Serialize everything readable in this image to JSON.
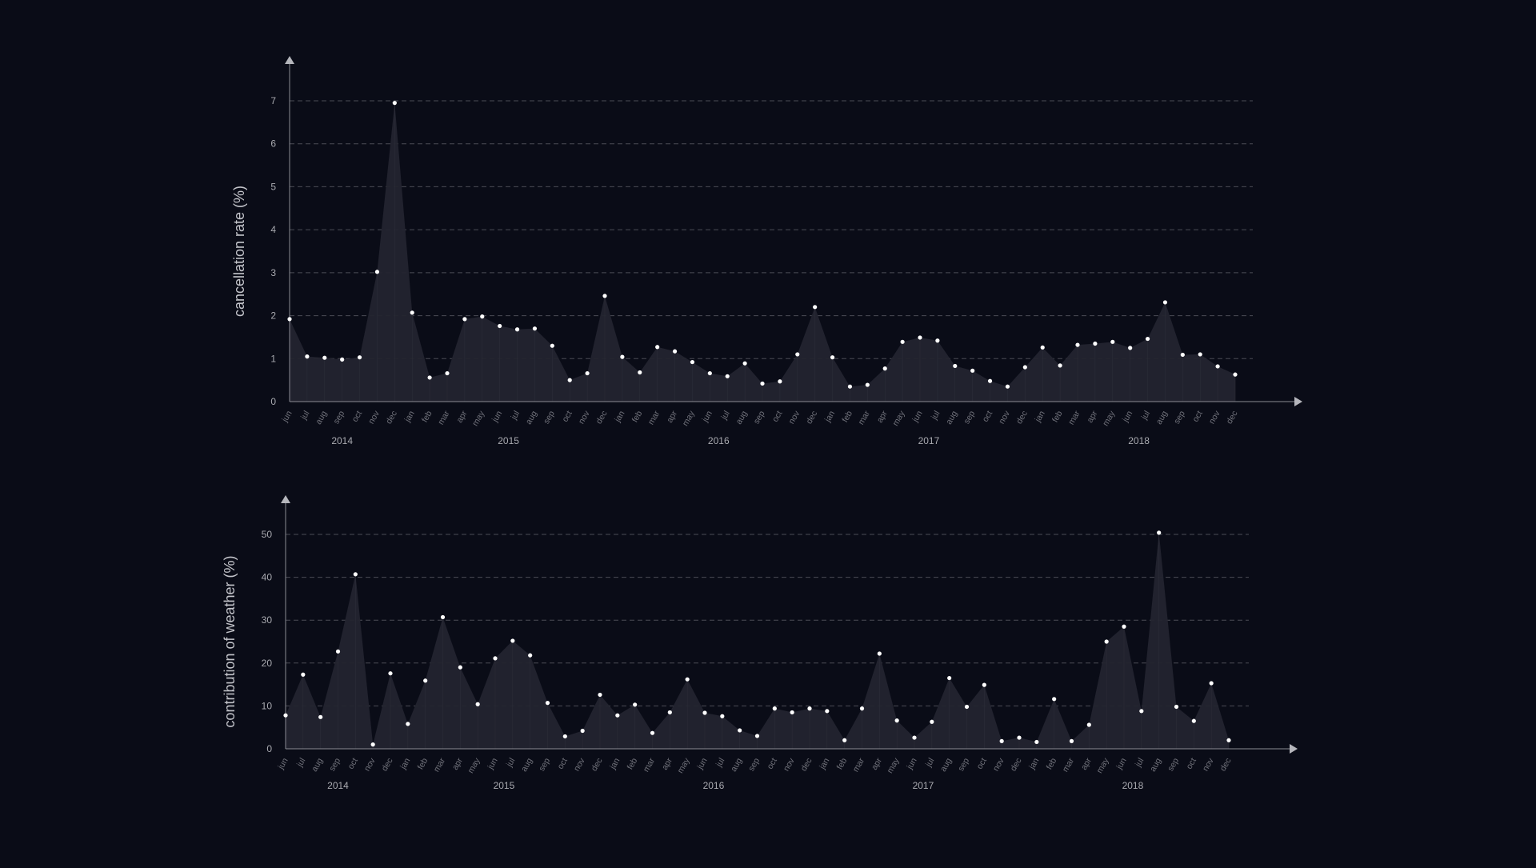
{
  "theme": {
    "background": "#0a0c17",
    "area_fill": "#23242f",
    "axis": "#8a8b93",
    "grid": "#4a4b55",
    "text": "#a9aab0",
    "point": "#ffffff"
  },
  "chart_data": [
    {
      "type": "area",
      "ylabel": "cancellation rate (%)",
      "ylim": [
        0,
        7
      ],
      "yticks": [
        0,
        1,
        2,
        3,
        4,
        5,
        6,
        7
      ],
      "grid": true,
      "x": [
        "jun",
        "jul",
        "aug",
        "sep",
        "oct",
        "nov",
        "dec",
        "jan",
        "feb",
        "mar",
        "apr",
        "may",
        "jun",
        "jul",
        "aug",
        "sep",
        "oct",
        "nov",
        "dec",
        "jan",
        "feb",
        "mar",
        "apr",
        "may",
        "jun",
        "jul",
        "aug",
        "sep",
        "oct",
        "nov",
        "dec",
        "jan",
        "feb",
        "mar",
        "apr",
        "may",
        "jun",
        "jul",
        "aug",
        "sep",
        "oct",
        "nov",
        "dec",
        "jan",
        "feb",
        "mar",
        "apr",
        "may",
        "jun",
        "jul",
        "aug",
        "sep",
        "oct",
        "nov",
        "dec"
      ],
      "years": [
        {
          "label": "2014",
          "from": 0,
          "to": 6
        },
        {
          "label": "2015",
          "from": 7,
          "to": 18
        },
        {
          "label": "2016",
          "from": 19,
          "to": 30
        },
        {
          "label": "2017",
          "from": 31,
          "to": 42
        },
        {
          "label": "2018",
          "from": 43,
          "to": 54
        }
      ],
      "values": [
        1.92,
        1.05,
        1.02,
        0.98,
        1.03,
        3.02,
        6.95,
        2.07,
        0.56,
        0.66,
        1.92,
        1.98,
        1.76,
        1.68,
        1.7,
        1.3,
        0.5,
        0.66,
        2.46,
        1.04,
        0.68,
        1.27,
        1.17,
        0.92,
        0.66,
        0.59,
        0.89,
        0.42,
        0.47,
        1.1,
        2.2,
        1.03,
        0.35,
        0.39,
        0.77,
        1.39,
        1.49,
        1.42,
        0.83,
        0.72,
        0.48,
        0.35,
        0.8,
        1.26,
        0.84,
        1.32,
        1.35,
        1.39,
        1.25,
        1.46,
        2.31,
        1.09,
        1.1,
        0.82,
        0.63
      ]
    },
    {
      "type": "area",
      "ylabel": "contribution of weather (%)",
      "ylim": [
        0,
        50
      ],
      "yticks": [
        0,
        10,
        20,
        30,
        40,
        50
      ],
      "grid": true,
      "x": [
        "jun",
        "jul",
        "aug",
        "sep",
        "oct",
        "nov",
        "dec",
        "jan",
        "feb",
        "mar",
        "apr",
        "may",
        "jun",
        "jul",
        "aug",
        "sep",
        "oct",
        "nov",
        "dec",
        "jan",
        "feb",
        "mar",
        "apr",
        "may",
        "jun",
        "jul",
        "aug",
        "sep",
        "oct",
        "nov",
        "dec",
        "jan",
        "feb",
        "mar",
        "apr",
        "may",
        "jun",
        "jul",
        "aug",
        "sep",
        "oct",
        "nov",
        "dec",
        "jan",
        "feb",
        "mar",
        "apr",
        "may",
        "jun",
        "jul",
        "aug",
        "sep",
        "oct",
        "nov",
        "dec"
      ],
      "years": [
        {
          "label": "2014",
          "from": 0,
          "to": 6
        },
        {
          "label": "2015",
          "from": 7,
          "to": 18
        },
        {
          "label": "2016",
          "from": 19,
          "to": 30
        },
        {
          "label": "2017",
          "from": 31,
          "to": 42
        },
        {
          "label": "2018",
          "from": 43,
          "to": 54
        }
      ],
      "values": [
        7.8,
        17.3,
        7.4,
        22.7,
        40.7,
        1.0,
        17.6,
        5.8,
        15.9,
        30.7,
        19.0,
        10.4,
        21.1,
        25.2,
        21.8,
        10.7,
        2.9,
        4.2,
        12.6,
        7.8,
        10.3,
        3.7,
        8.5,
        16.2,
        8.4,
        7.6,
        4.3,
        3.0,
        9.4,
        8.5,
        9.4,
        8.8,
        2.0,
        9.4,
        22.2,
        6.6,
        2.6,
        6.3,
        16.5,
        9.8,
        14.9,
        1.8,
        2.6,
        1.6,
        11.6,
        1.8,
        5.6,
        25.0,
        28.5,
        8.8,
        50.4,
        9.8,
        6.5,
        15.3,
        2.0
      ]
    }
  ]
}
